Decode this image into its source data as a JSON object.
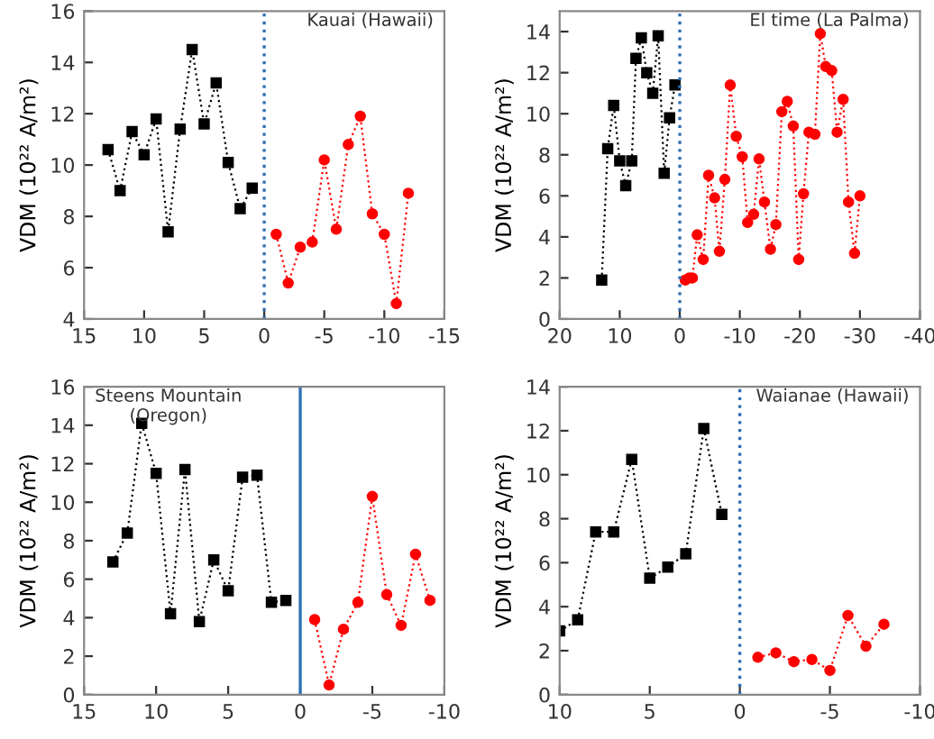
{
  "chart_data": [
    {
      "type": "line",
      "ylabel": "VDM (10²² A/m²)",
      "annotations": [
        "Kauai (Hawaii)"
      ],
      "xlim": [
        15,
        -15
      ],
      "xticks": [
        15,
        10,
        5,
        0,
        -5,
        -10,
        -15
      ],
      "ylim": [
        4,
        16
      ],
      "yticks": [
        4,
        6,
        8,
        10,
        12,
        14,
        16
      ],
      "grid": false,
      "line_style": "dotted",
      "ref_lines": [
        {
          "axis": "x",
          "value": 0,
          "color": "#2f6fb5",
          "line_style": "dotted"
        }
      ],
      "series": [
        {
          "color": "#000000",
          "marker": "square",
          "x": [
            13,
            12,
            11,
            10,
            9,
            8,
            7,
            6,
            5,
            4,
            3,
            2,
            1
          ],
          "values": [
            10.6,
            9.0,
            11.3,
            10.4,
            11.8,
            7.4,
            11.4,
            14.5,
            11.6,
            13.2,
            10.1,
            8.3,
            9.1
          ]
        },
        {
          "color": "#ff0000",
          "marker": "circle",
          "x": [
            -1,
            -2,
            -3,
            -4,
            -5,
            -6,
            -7,
            -8,
            -9,
            -10,
            -11,
            -12
          ],
          "values": [
            7.3,
            5.4,
            6.8,
            7.0,
            10.2,
            7.5,
            10.8,
            11.9,
            8.1,
            7.3,
            4.6,
            8.9
          ]
        }
      ]
    },
    {
      "type": "line",
      "ylabel": "VDM (10²² A/m²)",
      "annotations": [
        "El time (La Palma)"
      ],
      "xlim": [
        20,
        -40
      ],
      "xticks": [
        20,
        10,
        0,
        -10,
        -20,
        -30,
        -40
      ],
      "ylim": [
        0,
        15
      ],
      "yticks": [
        0,
        2,
        4,
        6,
        8,
        10,
        12,
        14
      ],
      "grid": false,
      "line_style": "dotted",
      "ref_lines": [
        {
          "axis": "x",
          "value": 0,
          "color": "#2f6fb5",
          "line_style": "dotted"
        }
      ],
      "series": [
        {
          "color": "#000000",
          "marker": "square",
          "x": [
            13,
            12,
            11,
            10,
            9,
            8,
            7.3,
            6.4,
            5.5,
            4.5,
            3.6,
            2.6,
            1.7,
            0.8
          ],
          "values": [
            1.9,
            8.3,
            10.4,
            7.7,
            6.5,
            7.7,
            12.7,
            13.7,
            12.0,
            11.0,
            13.8,
            7.1,
            9.8,
            11.4
          ]
        },
        {
          "color": "#ff0000",
          "marker": "circle",
          "x": [
            -0.9,
            -1.6,
            -2.1,
            -2.9,
            -3.9,
            -4.8,
            -5.8,
            -6.6,
            -7.5,
            -8.4,
            -9.4,
            -10.4,
            -11.3,
            -12.3,
            -13.2,
            -14.1,
            -15.1,
            -16.0,
            -17.0,
            -17.9,
            -18.9,
            -19.8,
            -20.6,
            -21.5,
            -22.5,
            -23.4,
            -24.3,
            -25.3,
            -26.2,
            -27.2,
            -28.1,
            -29.1,
            -30.0
          ],
          "values": [
            1.9,
            2.0,
            2.0,
            4.1,
            2.9,
            7.0,
            5.9,
            3.3,
            6.8,
            11.4,
            8.9,
            7.9,
            4.7,
            5.1,
            7.8,
            5.7,
            3.4,
            4.6,
            10.1,
            10.6,
            9.4,
            2.9,
            6.1,
            9.1,
            9.0,
            13.9,
            12.3,
            12.1,
            9.1,
            10.7,
            5.7,
            3.2,
            6.0
          ]
        }
      ]
    },
    {
      "type": "line",
      "ylabel": "VDM (10²² A/m²)",
      "annotations": [
        "Steens Mountain\n(Oregon)"
      ],
      "xlim": [
        15,
        -10
      ],
      "xticks": [
        15,
        10,
        5,
        0,
        -5,
        -10
      ],
      "ylim": [
        0,
        16
      ],
      "yticks": [
        0,
        2,
        4,
        6,
        8,
        10,
        12,
        14,
        16
      ],
      "grid": false,
      "line_style": "dotted",
      "ref_lines": [
        {
          "axis": "x",
          "value": 0,
          "color": "#2f6fb5",
          "line_style": "solid"
        }
      ],
      "series": [
        {
          "color": "#000000",
          "marker": "square",
          "x": [
            13,
            12,
            11,
            10,
            9,
            8,
            7,
            6,
            5,
            4,
            3,
            2,
            1
          ],
          "values": [
            6.9,
            8.4,
            14.1,
            11.5,
            4.2,
            11.7,
            3.8,
            7.0,
            5.4,
            11.3,
            11.4,
            4.8,
            4.9
          ]
        },
        {
          "color": "#ff0000",
          "marker": "circle",
          "x": [
            -1,
            -2,
            -3,
            -4,
            -5,
            -6,
            -7,
            -8,
            -9
          ],
          "values": [
            3.9,
            0.5,
            3.4,
            4.8,
            10.3,
            5.2,
            3.6,
            7.3,
            4.9
          ]
        }
      ]
    },
    {
      "type": "line",
      "ylabel": "VDM (10²² A/m²)",
      "annotations": [
        "Waianae (Hawaii)"
      ],
      "xlim": [
        10,
        -10
      ],
      "xticks": [
        10,
        5,
        0,
        -5,
        -10
      ],
      "ylim": [
        0,
        14
      ],
      "yticks": [
        0,
        2,
        4,
        6,
        8,
        10,
        12,
        14
      ],
      "grid": false,
      "line_style": "dotted",
      "ref_lines": [
        {
          "axis": "x",
          "value": 0,
          "color": "#2f6fb5",
          "line_style": "dotted"
        }
      ],
      "series": [
        {
          "color": "#000000",
          "marker": "square",
          "x": [
            10,
            9,
            8,
            7,
            6,
            5,
            4,
            3,
            2,
            1
          ],
          "values": [
            2.9,
            3.4,
            7.4,
            7.4,
            10.7,
            5.3,
            5.8,
            6.4,
            12.1,
            8.2
          ]
        },
        {
          "color": "#ff0000",
          "marker": "circle",
          "x": [
            -1,
            -2,
            -3,
            -4,
            -5,
            -6,
            -7,
            -8
          ],
          "values": [
            1.7,
            1.9,
            1.5,
            1.6,
            1.1,
            3.6,
            2.2,
            3.2
          ]
        }
      ]
    }
  ]
}
